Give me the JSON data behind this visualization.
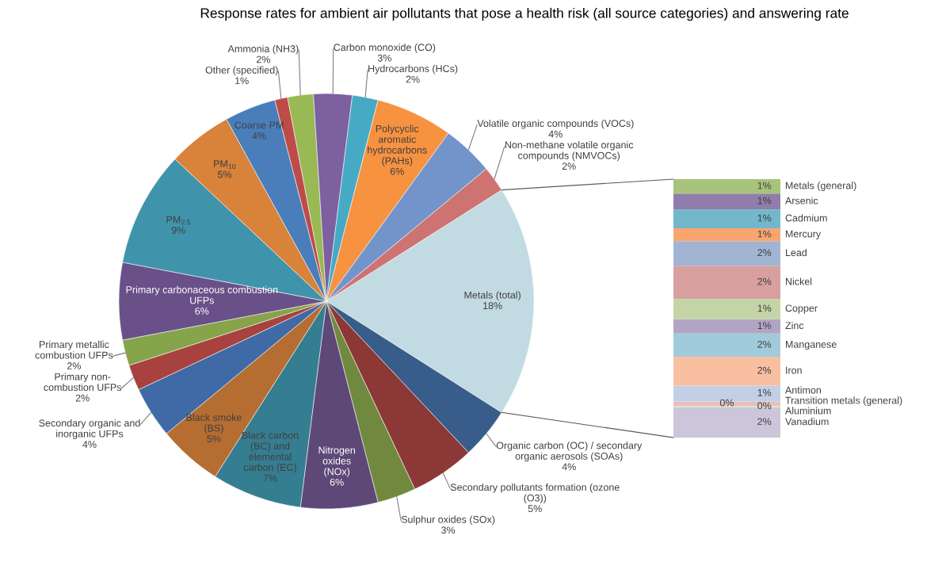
{
  "chart_data": [
    {
      "type": "pie",
      "title": "Response rates for ambient air pollutants that pose a health risk (all source categories) and answering rate",
      "categories": [
        "Metals (total)",
        "Organic carbon (OC) / secondary\norganic aerosols (SOAs)",
        "Secondary pollutants formation (ozone\n(O3))",
        "Sulphur oxides (SOx)",
        "Nitrogen\noxides\n(NOx)",
        "Black carbon\n(BC) and\nelemental\ncarbon (EC)",
        "Black smoke\n(BS)",
        "Secondary organic and\ninorganic UFPs",
        "Primary non-\ncombustion UFPs",
        "Primary metallic\ncombustion UFPs",
        "Primary carbonaceous combustion\nUFPs",
        "PM$_{2.5}$",
        "PM$_{10}$",
        "Coarse PM",
        "Other (specified)",
        "Ammonia (NH3)",
        "Carbon monoxide (CO)",
        "Hydrocarbons (HCs)",
        "Polycyclic\naromatic\nhydrocarbons\n(PAHs)",
        "Volatile organic compounds (VOCs)",
        "Non-methane volatile organic\ncompounds (NMVOCs)"
      ],
      "values": [
        18,
        4,
        5,
        3,
        6,
        7,
        5,
        4,
        2,
        2,
        6,
        9,
        5,
        4,
        1,
        2,
        3,
        2,
        6,
        4,
        2
      ],
      "colors": [
        "#c2dbe3",
        "#385d8a",
        "#8c3836",
        "#71893f",
        "#5e4878",
        "#357d91",
        "#b66d31",
        "#3f6aa5",
        "#a7423f",
        "#86a44a",
        "#6a5089",
        "#3f94ab",
        "#d8823a",
        "#4a7ebb",
        "#be4b48",
        "#98b954",
        "#7d60a0",
        "#46aac5",
        "#f69240",
        "#7394cb",
        "#cd7371"
      ],
      "value_labels": [
        "18%",
        "4%",
        "5%",
        "3%",
        "6%",
        "7%",
        "5%",
        "4%",
        "2%",
        "2%",
        "6%",
        "9%",
        "5%",
        "4%",
        "1%",
        "2%",
        "3%",
        "2%",
        "6%",
        "4%",
        "2%"
      ]
    },
    {
      "type": "bar",
      "stacked": true,
      "categories": [
        null
      ],
      "series": [
        {
          "name": "Vanadium",
          "color": "#cdc6da",
          "values": [
            2.1
          ],
          "value_labels": [
            "2%"
          ]
        },
        {
          "name": "Aluminium",
          "color": "#d9e3c9",
          "values": [
            0.1
          ],
          "value_labels": [
            "0%"
          ]
        },
        {
          "name": "Transition metals (general)",
          "color": "#e8bfbe",
          "values": [
            0.3
          ],
          "value_labels": [
            "0%"
          ]
        },
        {
          "name": "Antimon",
          "color": "#c3cfe4",
          "values": [
            1.1
          ],
          "value_labels": [
            "1%"
          ]
        },
        {
          "name": "Iron",
          "color": "#f8bfa1",
          "values": [
            2.0
          ],
          "value_labels": [
            "2%"
          ]
        },
        {
          "name": "Manganese",
          "color": "#a1cbda",
          "values": [
            1.6
          ],
          "value_labels": [
            "2%"
          ]
        },
        {
          "name": "Zinc",
          "color": "#b2a5c4",
          "values": [
            1.0
          ],
          "value_labels": [
            "1%"
          ]
        },
        {
          "name": "Copper",
          "color": "#c3d5a6",
          "values": [
            1.4
          ],
          "value_labels": [
            "1%"
          ]
        },
        {
          "name": "Nickel",
          "color": "#d7a09f",
          "values": [
            2.3
          ],
          "value_labels": [
            "2%"
          ]
        },
        {
          "name": "Lead",
          "color": "#a2b4d4",
          "values": [
            1.7
          ],
          "value_labels": [
            "2%"
          ]
        },
        {
          "name": "Mercury",
          "color": "#f9a66e",
          "values": [
            0.9
          ],
          "value_labels": [
            "1%"
          ]
        },
        {
          "name": "Cadmium",
          "color": "#72b7cc",
          "values": [
            1.3
          ],
          "value_labels": [
            "1%"
          ]
        },
        {
          "name": "Arsenic",
          "color": "#917dab",
          "values": [
            1.1
          ],
          "value_labels": [
            "1%"
          ]
        },
        {
          "name": "Metals (general)",
          "color": "#a8c37c",
          "values": [
            1.0
          ],
          "value_labels": [
            "1%"
          ]
        }
      ]
    }
  ]
}
